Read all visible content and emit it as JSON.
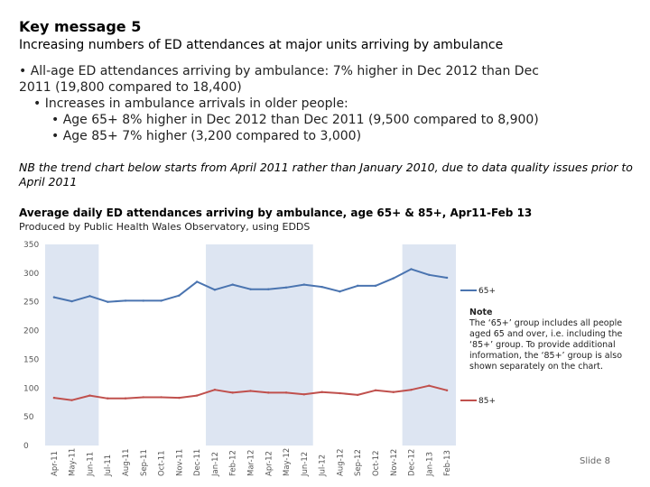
{
  "header": {
    "title": "Key message 5",
    "subtitle": "Increasing numbers of ED attendances at major units arriving by ambulance"
  },
  "bullets": [
    "• All-age ED attendances arriving by ambulance: 7% higher in Dec 2012 than Dec",
    "2011 (19,800 compared to 18,400)",
    "• Increases in ambulance arrivals in older people:",
    "• Age 65+ 8% higher in Dec 2012 than Dec 2011 (9,500 compared to 8,900)",
    "• Age 85+ 7% higher (3,200 compared to 3,000)"
  ],
  "nb_text": "NB the trend chart below starts from April 2011 rather than January 2010, due to data quality issues prior to April 2011",
  "note": {
    "heading": "Note",
    "body": "The ‘65+’ group includes all people aged 65 and over, i.e. including the ‘85+’ group. To provide additional information, the ‘85+’ group is also shown separately on the chart."
  },
  "slide_label": "Slide 8",
  "colors": {
    "series_65": "#4a74b0",
    "series_85": "#c0504d",
    "band": "#dde5f2",
    "axis_text": "#555555"
  },
  "chart_data": {
    "type": "line",
    "title": "Average daily ED attendances arriving by ambulance, age 65+ & 85+, Apr11-Feb 13",
    "subtitle": "Produced by Public Health Wales Observatory, using EDDS",
    "x": [
      "Apr-11",
      "May-11",
      "Jun-11",
      "Jul-11",
      "Aug-11",
      "Sep-11",
      "Oct-11",
      "Nov-11",
      "Dec-11",
      "Jan-12",
      "Feb-12",
      "Mar-12",
      "Apr-12",
      "May-12",
      "Jun-12",
      "Jul-12",
      "Aug-12",
      "Sep-12",
      "Oct-12",
      "Nov-12",
      "Dec-12",
      "Jan-13",
      "Feb-13"
    ],
    "ylim": [
      0,
      350
    ],
    "yticks": [
      0,
      50,
      100,
      150,
      200,
      250,
      300,
      350
    ],
    "shaded_periods": [
      [
        0,
        2
      ],
      [
        9,
        14
      ],
      [
        20,
        22
      ]
    ],
    "series": [
      {
        "name": "65+",
        "values": [
          258,
          251,
          260,
          250,
          252,
          252,
          252,
          261,
          285,
          271,
          280,
          272,
          272,
          275,
          280,
          276,
          268,
          278,
          278,
          291,
          307,
          297,
          292
        ]
      },
      {
        "name": "85+",
        "values": [
          83,
          79,
          87,
          82,
          82,
          84,
          84,
          83,
          87,
          97,
          92,
          95,
          92,
          92,
          89,
          93,
          91,
          88,
          96,
          93,
          97,
          104,
          96
        ]
      }
    ],
    "legend": "right, at line ends",
    "grid": false
  }
}
